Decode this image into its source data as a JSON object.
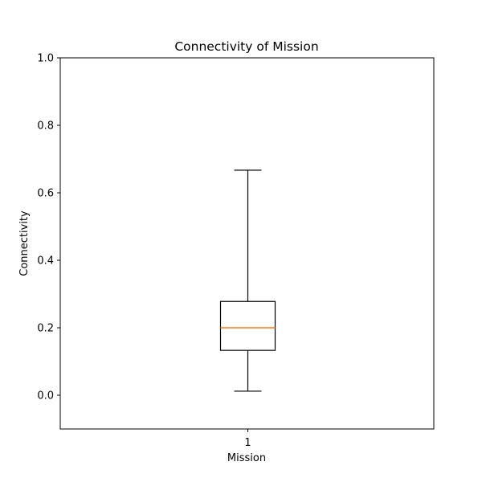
{
  "chart_data": {
    "type": "box",
    "title": "Connectivity of Mission",
    "xlabel": "Mission",
    "ylabel": "Connectivity",
    "categories": [
      "1"
    ],
    "ylim": [
      -0.1,
      1.0
    ],
    "yticks": [
      0.0,
      0.2,
      0.4,
      0.6,
      0.8,
      1.0
    ],
    "ytick_labels": [
      "0.0",
      "0.2",
      "0.4",
      "0.6",
      "0.8",
      "1.0"
    ],
    "boxes": [
      {
        "category": "1",
        "whisker_low": 0.012,
        "q1": 0.133,
        "median": 0.2,
        "q3": 0.278,
        "whisker_high": 0.667
      }
    ],
    "grid": false,
    "colors": {
      "median": "#ff7f0e",
      "box": "#000000",
      "whisker": "#000000",
      "axes": "#000000"
    }
  }
}
